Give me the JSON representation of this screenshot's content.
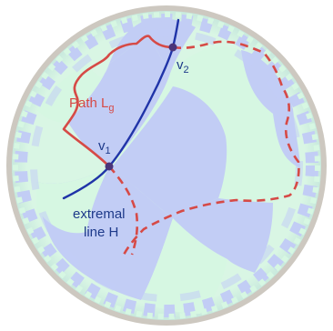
{
  "labels": {
    "path_name": "Path L",
    "path_subscript": "g",
    "v1_name": "v",
    "v1_subscript": "1",
    "v2_name": "v",
    "v2_subscript": "2",
    "line_label_line1": "extremal",
    "line_label_line2": "line H"
  },
  "colors": {
    "boundary_rim": "#cdc8c0",
    "tile_blue": "#c2cdf5",
    "tile_green": "#d6f7e2",
    "path_red": "#d64a46",
    "line_blue": "#2034a8",
    "vertex": "#4a3579",
    "label_blue": "#1e3a8a",
    "label_red": "#d64a46"
  }
}
